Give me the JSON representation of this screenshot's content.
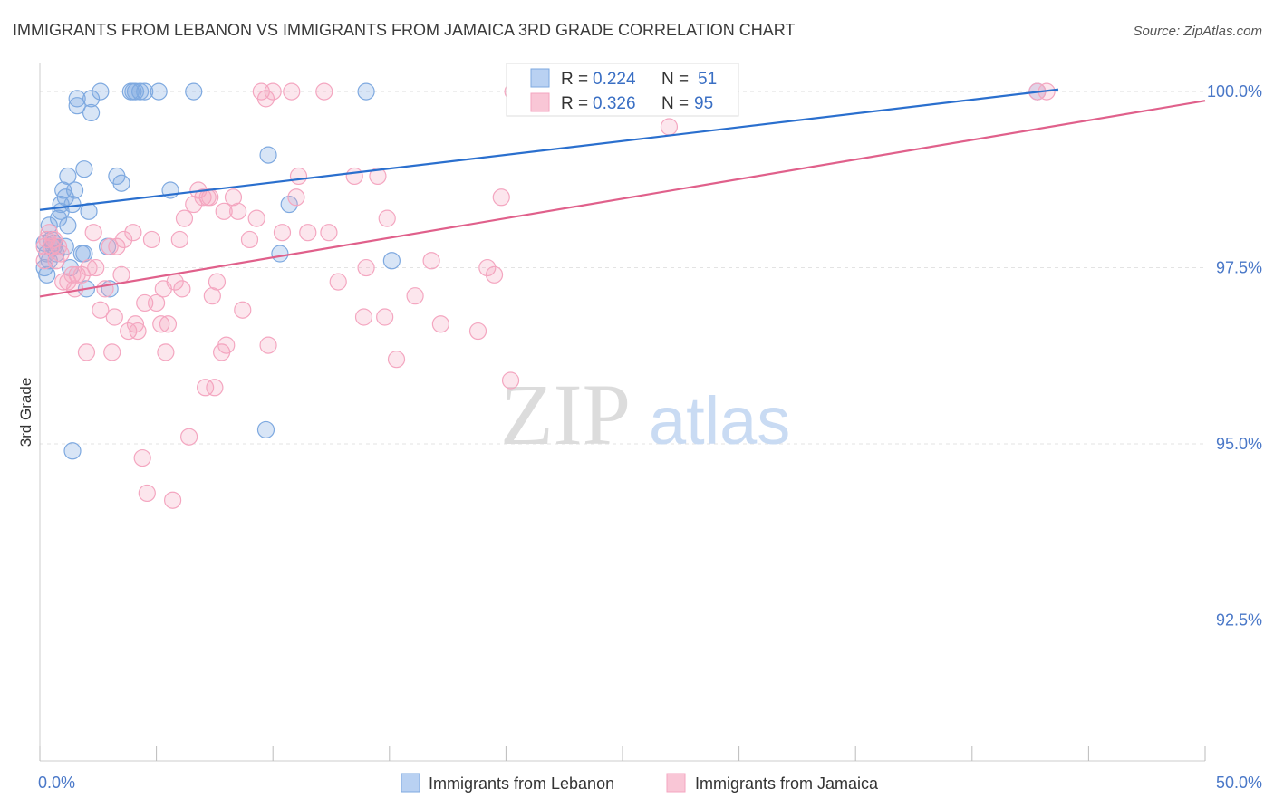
{
  "chart_data": {
    "type": "scatter",
    "title": "IMMIGRANTS FROM LEBANON VS IMMIGRANTS FROM JAMAICA 3RD GRADE CORRELATION CHART",
    "source": "Source: ZipAtlas.com",
    "watermark": {
      "zip": "ZIP",
      "atlas": "atlas"
    },
    "ylabel": "3rd Grade",
    "xlim": [
      0,
      50
    ],
    "ylim": [
      90.5,
      100.4
    ],
    "x_tick_labels": [
      {
        "value": 0,
        "label": "0.0%"
      },
      {
        "value": 50,
        "label": "50.0%"
      }
    ],
    "y_ticks": [
      {
        "value": 100.0,
        "label": "100.0%"
      },
      {
        "value": 97.5,
        "label": "97.5%"
      },
      {
        "value": 95.0,
        "label": "95.0%"
      },
      {
        "value": 92.5,
        "label": "92.5%"
      }
    ],
    "grid": true,
    "legend_position": "top-center",
    "legend": [
      {
        "series": "Immigrants from Lebanon",
        "r_label": "R =",
        "r_value": "0.224",
        "n_label": "N =",
        "n_value": "51"
      },
      {
        "series": "Immigrants from Jamaica",
        "r_label": "R =",
        "r_value": "0.326",
        "n_label": "N =",
        "n_value": "95"
      }
    ],
    "series": [
      {
        "name": "Immigrants from Lebanon",
        "color": "#7ea9e0",
        "line_color": "#2a6fce",
        "trend": {
          "x0": 0,
          "y0": 98.32,
          "x1": 43.7,
          "y1": 100.03
        },
        "points": [
          [
            0.2,
            97.85
          ],
          [
            0.2,
            97.5
          ],
          [
            0.3,
            97.7
          ],
          [
            0.4,
            97.6
          ],
          [
            0.4,
            98.1
          ],
          [
            0.5,
            97.9
          ],
          [
            0.6,
            97.8
          ],
          [
            0.7,
            97.7
          ],
          [
            0.8,
            98.2
          ],
          [
            0.9,
            98.4
          ],
          [
            0.9,
            98.3
          ],
          [
            1.0,
            98.6
          ],
          [
            1.1,
            98.5
          ],
          [
            1.1,
            97.8
          ],
          [
            1.2,
            98.8
          ],
          [
            1.2,
            98.1
          ],
          [
            1.3,
            97.5
          ],
          [
            1.4,
            98.4
          ],
          [
            1.5,
            98.6
          ],
          [
            1.6,
            99.9
          ],
          [
            1.6,
            99.8
          ],
          [
            1.8,
            97.7
          ],
          [
            1.9,
            97.7
          ],
          [
            1.9,
            98.9
          ],
          [
            2.0,
            97.2
          ],
          [
            2.1,
            98.3
          ],
          [
            2.2,
            99.9
          ],
          [
            2.2,
            99.7
          ],
          [
            2.6,
            100.0
          ],
          [
            2.9,
            97.8
          ],
          [
            3.0,
            97.2
          ],
          [
            3.3,
            98.8
          ],
          [
            3.5,
            98.7
          ],
          [
            3.9,
            100.0
          ],
          [
            4.0,
            100.0
          ],
          [
            4.1,
            100.0
          ],
          [
            4.3,
            100.0
          ],
          [
            4.5,
            100.0
          ],
          [
            5.1,
            100.0
          ],
          [
            5.6,
            98.6
          ],
          [
            6.6,
            100.0
          ],
          [
            9.7,
            95.2
          ],
          [
            9.8,
            99.1
          ],
          [
            10.3,
            97.7
          ],
          [
            10.7,
            98.4
          ],
          [
            14.0,
            100.0
          ],
          [
            15.1,
            97.6
          ],
          [
            42.8,
            100.0
          ],
          [
            1.4,
            94.9
          ],
          [
            0.3,
            97.4
          ],
          [
            0.6,
            97.85
          ]
        ]
      },
      {
        "name": "Immigrants from Jamaica",
        "color": "#f4a6c0",
        "line_color": "#e0608b",
        "trend": {
          "x0": 0,
          "y0": 97.09,
          "x1": 50,
          "y1": 99.87
        },
        "points": [
          [
            0.2,
            97.6
          ],
          [
            0.2,
            97.8
          ],
          [
            0.3,
            97.9
          ],
          [
            0.4,
            98.0
          ],
          [
            0.5,
            97.8
          ],
          [
            0.6,
            97.9
          ],
          [
            0.7,
            97.6
          ],
          [
            0.8,
            97.8
          ],
          [
            1.0,
            97.3
          ],
          [
            1.2,
            97.3
          ],
          [
            1.4,
            97.4
          ],
          [
            1.5,
            97.2
          ],
          [
            1.6,
            97.4
          ],
          [
            1.8,
            97.4
          ],
          [
            2.0,
            96.3
          ],
          [
            2.1,
            97.5
          ],
          [
            2.3,
            98.0
          ],
          [
            2.4,
            97.5
          ],
          [
            2.6,
            96.9
          ],
          [
            2.8,
            97.2
          ],
          [
            3.0,
            97.8
          ],
          [
            3.1,
            96.3
          ],
          [
            3.2,
            96.8
          ],
          [
            3.3,
            97.8
          ],
          [
            3.5,
            97.4
          ],
          [
            3.6,
            97.9
          ],
          [
            3.8,
            96.6
          ],
          [
            4.0,
            98.0
          ],
          [
            4.1,
            96.7
          ],
          [
            4.2,
            96.6
          ],
          [
            4.4,
            94.8
          ],
          [
            4.5,
            97.0
          ],
          [
            4.6,
            94.3
          ],
          [
            4.8,
            97.9
          ],
          [
            5.0,
            97.0
          ],
          [
            5.2,
            96.7
          ],
          [
            5.3,
            97.2
          ],
          [
            5.4,
            96.3
          ],
          [
            5.5,
            96.7
          ],
          [
            5.7,
            94.2
          ],
          [
            5.8,
            97.3
          ],
          [
            6.0,
            97.9
          ],
          [
            6.1,
            97.2
          ],
          [
            6.2,
            98.2
          ],
          [
            6.4,
            95.1
          ],
          [
            6.6,
            98.4
          ],
          [
            6.8,
            98.6
          ],
          [
            7.0,
            98.5
          ],
          [
            7.1,
            95.8
          ],
          [
            7.3,
            98.5
          ],
          [
            7.4,
            97.1
          ],
          [
            7.5,
            95.8
          ],
          [
            7.6,
            97.3
          ],
          [
            7.8,
            96.3
          ],
          [
            7.9,
            98.3
          ],
          [
            8.0,
            96.4
          ],
          [
            8.3,
            98.5
          ],
          [
            8.5,
            98.3
          ],
          [
            8.7,
            96.9
          ],
          [
            9.0,
            97.9
          ],
          [
            9.3,
            98.2
          ],
          [
            9.5,
            100.0
          ],
          [
            9.7,
            99.9
          ],
          [
            9.8,
            96.4
          ],
          [
            10.0,
            100.0
          ],
          [
            10.4,
            98.0
          ],
          [
            10.8,
            100.0
          ],
          [
            11.0,
            98.5
          ],
          [
            11.1,
            98.8
          ],
          [
            11.5,
            98.0
          ],
          [
            12.2,
            100.0
          ],
          [
            12.4,
            98.0
          ],
          [
            12.8,
            97.3
          ],
          [
            13.5,
            98.8
          ],
          [
            13.9,
            96.8
          ],
          [
            14.0,
            97.5
          ],
          [
            14.5,
            98.8
          ],
          [
            14.8,
            96.8
          ],
          [
            14.9,
            98.2
          ],
          [
            15.3,
            96.2
          ],
          [
            16.1,
            97.1
          ],
          [
            16.8,
            97.6
          ],
          [
            17.2,
            96.7
          ],
          [
            18.8,
            96.6
          ],
          [
            19.2,
            97.5
          ],
          [
            19.5,
            97.4
          ],
          [
            19.8,
            98.5
          ],
          [
            20.2,
            95.9
          ],
          [
            20.3,
            100.0
          ],
          [
            25.9,
            100.0
          ],
          [
            27.0,
            99.5
          ],
          [
            42.8,
            100.0
          ],
          [
            43.2,
            100.0
          ],
          [
            0.9,
            97.7
          ],
          [
            7.2,
            98.5
          ]
        ]
      }
    ]
  }
}
